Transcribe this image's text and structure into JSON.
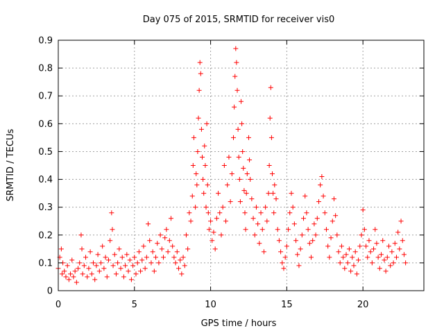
{
  "chart_data": {
    "type": "scatter",
    "title": "Day 075 of 2015, SRMTID for receiver vis0",
    "xlabel": "GPS time / hours",
    "ylabel": "SRMTID / TECUs",
    "xlim": [
      0,
      24
    ],
    "ylim": [
      0,
      0.9
    ],
    "xticks": [
      0,
      5,
      10,
      15,
      20
    ],
    "xtick_labels": [
      "0",
      "5",
      "10",
      "15",
      "20"
    ],
    "yticks": [
      0,
      0.1,
      0.2,
      0.3,
      0.4,
      0.5,
      0.6,
      0.7,
      0.8,
      0.9
    ],
    "ytick_labels": [
      "0",
      "0.1",
      "0.2",
      "0.3",
      "0.4",
      "0.5",
      "0.6",
      "0.7",
      "0.8",
      "0.9"
    ],
    "grid": true,
    "marker": "+",
    "color": "#ff0000",
    "series": [
      {
        "name": "vis0",
        "points": [
          [
            0.0,
            0.08
          ],
          [
            0.1,
            0.12
          ],
          [
            0.2,
            0.15
          ],
          [
            0.25,
            0.06
          ],
          [
            0.3,
            0.1
          ],
          [
            0.4,
            0.07
          ],
          [
            0.5,
            0.05
          ],
          [
            0.6,
            0.09
          ],
          [
            0.7,
            0.04
          ],
          [
            0.8,
            0.06
          ],
          [
            0.9,
            0.11
          ],
          [
            1.0,
            0.05
          ],
          [
            1.1,
            0.07
          ],
          [
            1.2,
            0.03
          ],
          [
            1.3,
            0.08
          ],
          [
            1.4,
            0.1
          ],
          [
            1.5,
            0.2
          ],
          [
            1.55,
            0.15
          ],
          [
            1.6,
            0.06
          ],
          [
            1.7,
            0.09
          ],
          [
            1.8,
            0.12
          ],
          [
            1.9,
            0.05
          ],
          [
            2.0,
            0.08
          ],
          [
            2.1,
            0.14
          ],
          [
            2.2,
            0.06
          ],
          [
            2.3,
            0.1
          ],
          [
            2.4,
            0.04
          ],
          [
            2.5,
            0.09
          ],
          [
            2.6,
            0.13
          ],
          [
            2.7,
            0.07
          ],
          [
            2.8,
            0.1
          ],
          [
            2.9,
            0.16
          ],
          [
            3.0,
            0.08
          ],
          [
            3.1,
            0.12
          ],
          [
            3.2,
            0.05
          ],
          [
            3.3,
            0.11
          ],
          [
            3.4,
            0.18
          ],
          [
            3.5,
            0.28
          ],
          [
            3.55,
            0.22
          ],
          [
            3.6,
            0.09
          ],
          [
            3.7,
            0.13
          ],
          [
            3.8,
            0.06
          ],
          [
            3.9,
            0.1
          ],
          [
            4.0,
            0.15
          ],
          [
            4.1,
            0.08
          ],
          [
            4.2,
            0.12
          ],
          [
            4.3,
            0.05
          ],
          [
            4.4,
            0.09
          ],
          [
            4.5,
            0.13
          ],
          [
            4.6,
            0.07
          ],
          [
            4.7,
            0.11
          ],
          [
            4.8,
            0.04
          ],
          [
            4.9,
            0.09
          ],
          [
            5.0,
            0.12
          ],
          [
            5.1,
            0.06
          ],
          [
            5.2,
            0.1
          ],
          [
            5.3,
            0.14
          ],
          [
            5.4,
            0.07
          ],
          [
            5.5,
            0.11
          ],
          [
            5.6,
            0.16
          ],
          [
            5.7,
            0.08
          ],
          [
            5.8,
            0.12
          ],
          [
            5.9,
            0.24
          ],
          [
            6.0,
            0.18
          ],
          [
            6.1,
            0.1
          ],
          [
            6.2,
            0.14
          ],
          [
            6.3,
            0.07
          ],
          [
            6.4,
            0.12
          ],
          [
            6.5,
            0.17
          ],
          [
            6.6,
            0.1
          ],
          [
            6.7,
            0.2
          ],
          [
            6.8,
            0.15
          ],
          [
            6.9,
            0.12
          ],
          [
            7.0,
            0.19
          ],
          [
            7.1,
            0.22
          ],
          [
            7.2,
            0.14
          ],
          [
            7.3,
            0.18
          ],
          [
            7.4,
            0.26
          ],
          [
            7.5,
            0.16
          ],
          [
            7.6,
            0.12
          ],
          [
            7.7,
            0.1
          ],
          [
            7.8,
            0.14
          ],
          [
            7.9,
            0.08
          ],
          [
            8.0,
            0.11
          ],
          [
            8.1,
            0.06
          ],
          [
            8.2,
            0.12
          ],
          [
            8.3,
            0.09
          ],
          [
            8.4,
            0.2
          ],
          [
            8.5,
            0.15
          ],
          [
            8.6,
            0.28
          ],
          [
            8.7,
            0.25
          ],
          [
            8.8,
            0.34
          ],
          [
            8.85,
            0.45
          ],
          [
            8.9,
            0.55
          ],
          [
            9.0,
            0.3
          ],
          [
            9.05,
            0.42
          ],
          [
            9.1,
            0.38
          ],
          [
            9.15,
            0.5
          ],
          [
            9.2,
            0.62
          ],
          [
            9.25,
            0.72
          ],
          [
            9.3,
            0.82
          ],
          [
            9.35,
            0.78
          ],
          [
            9.4,
            0.58
          ],
          [
            9.45,
            0.48
          ],
          [
            9.5,
            0.4
          ],
          [
            9.55,
            0.35
          ],
          [
            9.6,
            0.52
          ],
          [
            9.65,
            0.45
          ],
          [
            9.7,
            0.3
          ],
          [
            9.75,
            0.6
          ],
          [
            9.8,
            0.38
          ],
          [
            9.85,
            0.28
          ],
          [
            9.9,
            0.22
          ],
          [
            10.0,
            0.25
          ],
          [
            10.1,
            0.18
          ],
          [
            10.2,
            0.21
          ],
          [
            10.3,
            0.15
          ],
          [
            10.4,
            0.26
          ],
          [
            10.5,
            0.35
          ],
          [
            10.6,
            0.28
          ],
          [
            10.7,
            0.2
          ],
          [
            10.8,
            0.3
          ],
          [
            10.9,
            0.45
          ],
          [
            11.0,
            0.25
          ],
          [
            11.1,
            0.38
          ],
          [
            11.2,
            0.48
          ],
          [
            11.3,
            0.32
          ],
          [
            11.4,
            0.42
          ],
          [
            11.5,
            0.55
          ],
          [
            11.55,
            0.66
          ],
          [
            11.6,
            0.77
          ],
          [
            11.65,
            0.87
          ],
          [
            11.7,
            0.82
          ],
          [
            11.75,
            0.72
          ],
          [
            11.8,
            0.58
          ],
          [
            11.85,
            0.48
          ],
          [
            11.9,
            0.4
          ],
          [
            11.95,
            0.32
          ],
          [
            12.0,
            0.68
          ],
          [
            12.05,
            0.6
          ],
          [
            12.1,
            0.5
          ],
          [
            12.15,
            0.44
          ],
          [
            12.2,
            0.36
          ],
          [
            12.25,
            0.28
          ],
          [
            12.3,
            0.22
          ],
          [
            12.35,
            0.35
          ],
          [
            12.4,
            0.42
          ],
          [
            12.5,
            0.55
          ],
          [
            12.55,
            0.47
          ],
          [
            12.6,
            0.4
          ],
          [
            12.7,
            0.33
          ],
          [
            12.8,
            0.26
          ],
          [
            12.9,
            0.2
          ],
          [
            13.0,
            0.3
          ],
          [
            13.1,
            0.24
          ],
          [
            13.2,
            0.17
          ],
          [
            13.3,
            0.28
          ],
          [
            13.4,
            0.22
          ],
          [
            13.5,
            0.14
          ],
          [
            13.6,
            0.3
          ],
          [
            13.7,
            0.25
          ],
          [
            13.8,
            0.35
          ],
          [
            13.85,
            0.45
          ],
          [
            13.9,
            0.62
          ],
          [
            13.95,
            0.73
          ],
          [
            14.0,
            0.55
          ],
          [
            14.05,
            0.42
          ],
          [
            14.1,
            0.35
          ],
          [
            14.15,
            0.28
          ],
          [
            14.2,
            0.38
          ],
          [
            14.3,
            0.33
          ],
          [
            14.4,
            0.22
          ],
          [
            14.5,
            0.18
          ],
          [
            14.6,
            0.14
          ],
          [
            14.7,
            0.1
          ],
          [
            14.8,
            0.08
          ],
          [
            14.9,
            0.12
          ],
          [
            15.0,
            0.16
          ],
          [
            15.1,
            0.22
          ],
          [
            15.2,
            0.28
          ],
          [
            15.3,
            0.35
          ],
          [
            15.4,
            0.3
          ],
          [
            15.5,
            0.24
          ],
          [
            15.6,
            0.18
          ],
          [
            15.7,
            0.13
          ],
          [
            15.8,
            0.09
          ],
          [
            15.9,
            0.15
          ],
          [
            16.0,
            0.2
          ],
          [
            16.1,
            0.26
          ],
          [
            16.2,
            0.34
          ],
          [
            16.3,
            0.28
          ],
          [
            16.4,
            0.22
          ],
          [
            16.5,
            0.17
          ],
          [
            16.6,
            0.12
          ],
          [
            16.7,
            0.18
          ],
          [
            16.8,
            0.24
          ],
          [
            16.9,
            0.2
          ],
          [
            17.0,
            0.26
          ],
          [
            17.1,
            0.32
          ],
          [
            17.2,
            0.38
          ],
          [
            17.3,
            0.41
          ],
          [
            17.4,
            0.34
          ],
          [
            17.5,
            0.28
          ],
          [
            17.6,
            0.22
          ],
          [
            17.7,
            0.16
          ],
          [
            17.8,
            0.12
          ],
          [
            17.9,
            0.19
          ],
          [
            18.0,
            0.25
          ],
          [
            18.1,
            0.33
          ],
          [
            18.2,
            0.27
          ],
          [
            18.3,
            0.2
          ],
          [
            18.4,
            0.14
          ],
          [
            18.5,
            0.1
          ],
          [
            18.6,
            0.16
          ],
          [
            18.7,
            0.12
          ],
          [
            18.8,
            0.08
          ],
          [
            18.9,
            0.13
          ],
          [
            19.0,
            0.1
          ],
          [
            19.1,
            0.15
          ],
          [
            19.2,
            0.07
          ],
          [
            19.3,
            0.12
          ],
          [
            19.4,
            0.09
          ],
          [
            19.5,
            0.14
          ],
          [
            19.6,
            0.06
          ],
          [
            19.7,
            0.11
          ],
          [
            19.8,
            0.16
          ],
          [
            19.9,
            0.2
          ],
          [
            20.0,
            0.29
          ],
          [
            20.1,
            0.22
          ],
          [
            20.2,
            0.16
          ],
          [
            20.3,
            0.12
          ],
          [
            20.4,
            0.18
          ],
          [
            20.5,
            0.14
          ],
          [
            20.6,
            0.1
          ],
          [
            20.7,
            0.15
          ],
          [
            20.8,
            0.22
          ],
          [
            20.9,
            0.17
          ],
          [
            21.0,
            0.12
          ],
          [
            21.1,
            0.08
          ],
          [
            21.2,
            0.13
          ],
          [
            21.3,
            0.18
          ],
          [
            21.4,
            0.11
          ],
          [
            21.5,
            0.07
          ],
          [
            21.6,
            0.12
          ],
          [
            21.7,
            0.16
          ],
          [
            21.8,
            0.09
          ],
          [
            21.9,
            0.14
          ],
          [
            22.0,
            0.1
          ],
          [
            22.1,
            0.17
          ],
          [
            22.2,
            0.12
          ],
          [
            22.3,
            0.21
          ],
          [
            22.4,
            0.15
          ],
          [
            22.5,
            0.25
          ],
          [
            22.6,
            0.18
          ],
          [
            22.7,
            0.13
          ],
          [
            22.8,
            0.1
          ]
        ]
      }
    ]
  }
}
